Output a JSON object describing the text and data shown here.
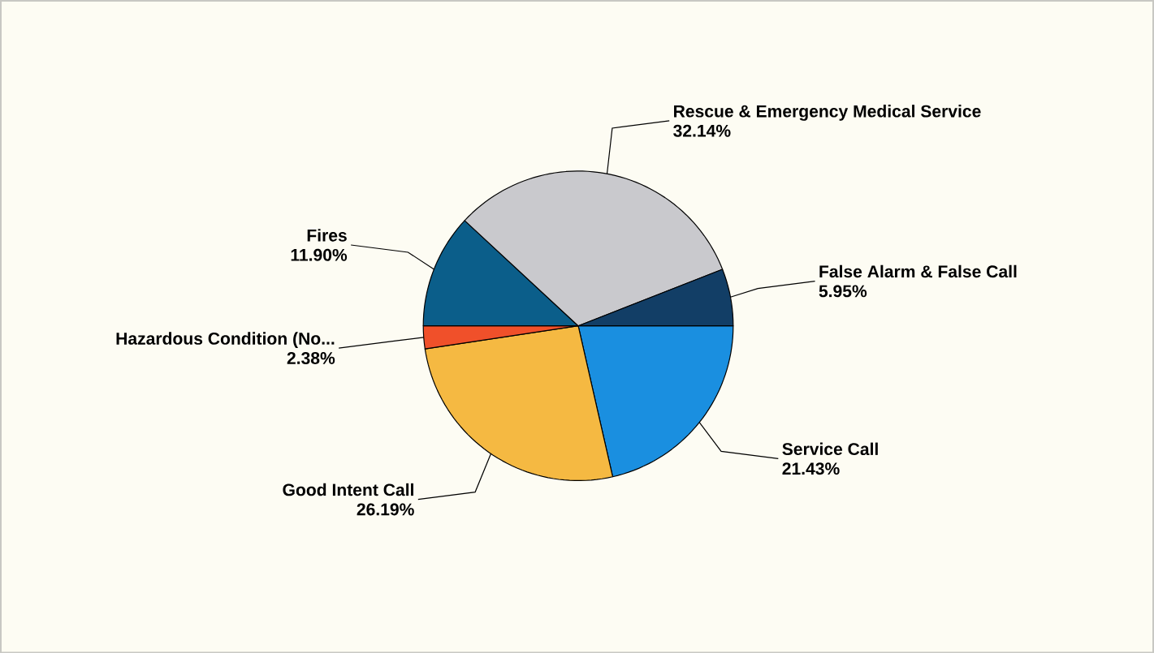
{
  "chart_data": {
    "type": "pie",
    "categories": [
      "Service Call",
      "Good Intent Call",
      "Hazardous Condition (No...",
      "Fires",
      "Rescue & Emergency Medical Service",
      "False Alarm & False Call"
    ],
    "values": [
      21.43,
      26.19,
      2.38,
      11.9,
      32.14,
      5.95
    ],
    "value_labels": [
      "21.43%",
      "26.19%",
      "2.38%",
      "11.90%",
      "32.14%",
      "5.95%"
    ],
    "colors": [
      "#1a8fe0",
      "#f5b942",
      "#f0502a",
      "#0b5e8a",
      "#c9c9cd",
      "#123e66"
    ],
    "legend": false
  }
}
